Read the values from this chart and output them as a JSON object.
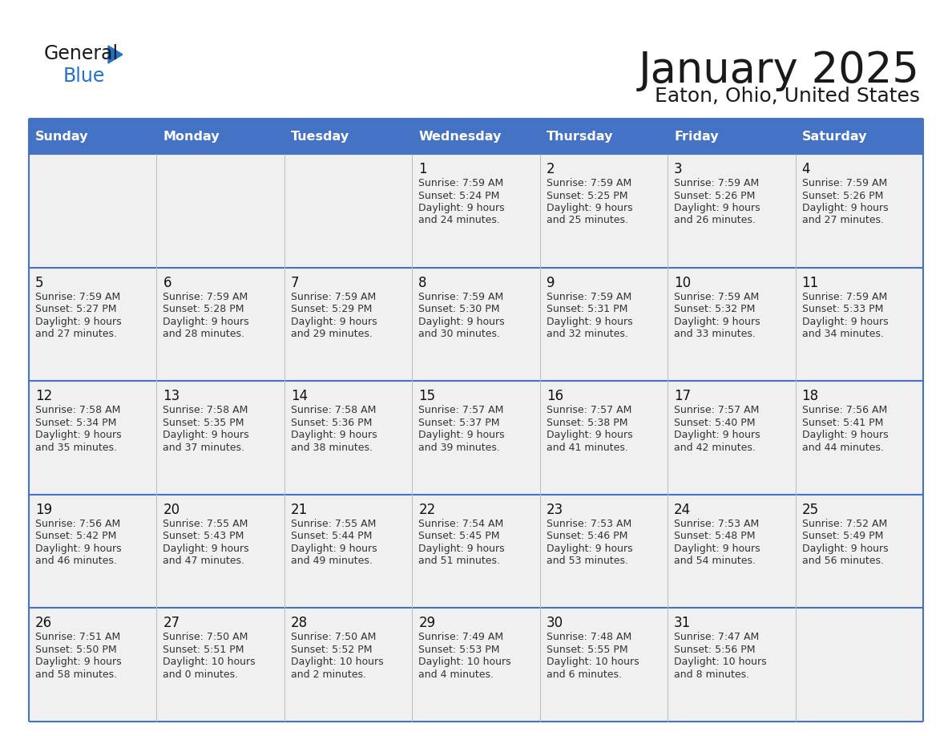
{
  "title": "January 2025",
  "subtitle": "Eaton, Ohio, United States",
  "days_of_week": [
    "Sunday",
    "Monday",
    "Tuesday",
    "Wednesday",
    "Thursday",
    "Friday",
    "Saturday"
  ],
  "header_bg": "#4472C4",
  "header_text": "#FFFFFF",
  "cell_bg": "#F0F0F0",
  "border_color": "#4472C4",
  "divider_color": "#4472C4",
  "text_color": "#222222",
  "calendar_data": [
    [
      null,
      null,
      null,
      {
        "day": 1,
        "sunrise": "7:59 AM",
        "sunset": "5:24 PM",
        "daylight": "9 hours",
        "daylight2": "and 24 minutes."
      },
      {
        "day": 2,
        "sunrise": "7:59 AM",
        "sunset": "5:25 PM",
        "daylight": "9 hours",
        "daylight2": "and 25 minutes."
      },
      {
        "day": 3,
        "sunrise": "7:59 AM",
        "sunset": "5:26 PM",
        "daylight": "9 hours",
        "daylight2": "and 26 minutes."
      },
      {
        "day": 4,
        "sunrise": "7:59 AM",
        "sunset": "5:26 PM",
        "daylight": "9 hours",
        "daylight2": "and 27 minutes."
      }
    ],
    [
      {
        "day": 5,
        "sunrise": "7:59 AM",
        "sunset": "5:27 PM",
        "daylight": "9 hours",
        "daylight2": "and 27 minutes."
      },
      {
        "day": 6,
        "sunrise": "7:59 AM",
        "sunset": "5:28 PM",
        "daylight": "9 hours",
        "daylight2": "and 28 minutes."
      },
      {
        "day": 7,
        "sunrise": "7:59 AM",
        "sunset": "5:29 PM",
        "daylight": "9 hours",
        "daylight2": "and 29 minutes."
      },
      {
        "day": 8,
        "sunrise": "7:59 AM",
        "sunset": "5:30 PM",
        "daylight": "9 hours",
        "daylight2": "and 30 minutes."
      },
      {
        "day": 9,
        "sunrise": "7:59 AM",
        "sunset": "5:31 PM",
        "daylight": "9 hours",
        "daylight2": "and 32 minutes."
      },
      {
        "day": 10,
        "sunrise": "7:59 AM",
        "sunset": "5:32 PM",
        "daylight": "9 hours",
        "daylight2": "and 33 minutes."
      },
      {
        "day": 11,
        "sunrise": "7:59 AM",
        "sunset": "5:33 PM",
        "daylight": "9 hours",
        "daylight2": "and 34 minutes."
      }
    ],
    [
      {
        "day": 12,
        "sunrise": "7:58 AM",
        "sunset": "5:34 PM",
        "daylight": "9 hours",
        "daylight2": "and 35 minutes."
      },
      {
        "day": 13,
        "sunrise": "7:58 AM",
        "sunset": "5:35 PM",
        "daylight": "9 hours",
        "daylight2": "and 37 minutes."
      },
      {
        "day": 14,
        "sunrise": "7:58 AM",
        "sunset": "5:36 PM",
        "daylight": "9 hours",
        "daylight2": "and 38 minutes."
      },
      {
        "day": 15,
        "sunrise": "7:57 AM",
        "sunset": "5:37 PM",
        "daylight": "9 hours",
        "daylight2": "and 39 minutes."
      },
      {
        "day": 16,
        "sunrise": "7:57 AM",
        "sunset": "5:38 PM",
        "daylight": "9 hours",
        "daylight2": "and 41 minutes."
      },
      {
        "day": 17,
        "sunrise": "7:57 AM",
        "sunset": "5:40 PM",
        "daylight": "9 hours",
        "daylight2": "and 42 minutes."
      },
      {
        "day": 18,
        "sunrise": "7:56 AM",
        "sunset": "5:41 PM",
        "daylight": "9 hours",
        "daylight2": "and 44 minutes."
      }
    ],
    [
      {
        "day": 19,
        "sunrise": "7:56 AM",
        "sunset": "5:42 PM",
        "daylight": "9 hours",
        "daylight2": "and 46 minutes."
      },
      {
        "day": 20,
        "sunrise": "7:55 AM",
        "sunset": "5:43 PM",
        "daylight": "9 hours",
        "daylight2": "and 47 minutes."
      },
      {
        "day": 21,
        "sunrise": "7:55 AM",
        "sunset": "5:44 PM",
        "daylight": "9 hours",
        "daylight2": "and 49 minutes."
      },
      {
        "day": 22,
        "sunrise": "7:54 AM",
        "sunset": "5:45 PM",
        "daylight": "9 hours",
        "daylight2": "and 51 minutes."
      },
      {
        "day": 23,
        "sunrise": "7:53 AM",
        "sunset": "5:46 PM",
        "daylight": "9 hours",
        "daylight2": "and 53 minutes."
      },
      {
        "day": 24,
        "sunrise": "7:53 AM",
        "sunset": "5:48 PM",
        "daylight": "9 hours",
        "daylight2": "and 54 minutes."
      },
      {
        "day": 25,
        "sunrise": "7:52 AM",
        "sunset": "5:49 PM",
        "daylight": "9 hours",
        "daylight2": "and 56 minutes."
      }
    ],
    [
      {
        "day": 26,
        "sunrise": "7:51 AM",
        "sunset": "5:50 PM",
        "daylight": "9 hours",
        "daylight2": "and 58 minutes."
      },
      {
        "day": 27,
        "sunrise": "7:50 AM",
        "sunset": "5:51 PM",
        "daylight": "10 hours",
        "daylight2": "and 0 minutes."
      },
      {
        "day": 28,
        "sunrise": "7:50 AM",
        "sunset": "5:52 PM",
        "daylight": "10 hours",
        "daylight2": "and 2 minutes."
      },
      {
        "day": 29,
        "sunrise": "7:49 AM",
        "sunset": "5:53 PM",
        "daylight": "10 hours",
        "daylight2": "and 4 minutes."
      },
      {
        "day": 30,
        "sunrise": "7:48 AM",
        "sunset": "5:55 PM",
        "daylight": "10 hours",
        "daylight2": "and 6 minutes."
      },
      {
        "day": 31,
        "sunrise": "7:47 AM",
        "sunset": "5:56 PM",
        "daylight": "10 hours",
        "daylight2": "and 8 minutes."
      },
      null
    ]
  ]
}
